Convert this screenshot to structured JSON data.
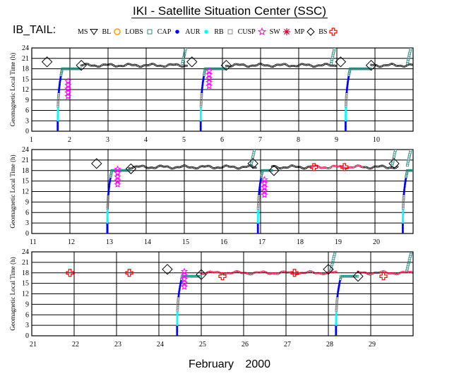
{
  "title": "IKI - Satellite Situation Center (SSC)",
  "program_label": "IB_TAIL:",
  "footer": {
    "month": "February",
    "year": "2000"
  },
  "legend": [
    {
      "label": "MS",
      "icon": "triangle-down-icon",
      "color": "#000000"
    },
    {
      "label": "BL",
      "icon": "circle-icon",
      "color": "#ff9900"
    },
    {
      "label": "LOBS",
      "icon": "square-icon",
      "color": "#2e8b80"
    },
    {
      "label": "CAP",
      "icon": "dot-icon",
      "color": "#0000ff"
    },
    {
      "label": "AUR",
      "icon": "dot-icon",
      "color": "#00ffff"
    },
    {
      "label": "RB",
      "icon": "square-icon",
      "color": "#888888"
    },
    {
      "label": "CUSP",
      "icon": "star-icon",
      "color": "#ff00ff"
    },
    {
      "label": "SW",
      "icon": "asterisk-icon",
      "color": "#cc0033"
    },
    {
      "label": "MP",
      "icon": "diamond-icon",
      "color": "#000000"
    },
    {
      "label": "BS",
      "icon": "cross-icon",
      "color": "#ff0000"
    }
  ],
  "chart_data": [
    {
      "type": "scatter",
      "panel": 1,
      "ylabel": "Geomagnetic Local Time (h)",
      "xlim": [
        1,
        11
      ],
      "ylim": [
        0,
        24
      ],
      "x_ticks": [
        1,
        2,
        3,
        4,
        5,
        6,
        7,
        8,
        9,
        10
      ],
      "y_ticks": [
        0,
        3,
        6,
        9,
        12,
        15,
        18,
        21,
        24
      ],
      "orbits": [
        {
          "start": 0.85,
          "ascent_day": 1.8,
          "apogee_day": 2.3,
          "end": 5.1,
          "cusp": [
            1.95,
            10
          ]
        },
        {
          "start": 5.1,
          "ascent_day": 5.55,
          "apogee_day": 6.1,
          "end": 9.0,
          "cusp": [
            5.65,
            13
          ]
        },
        {
          "start": 9.0,
          "ascent_day": 9.35,
          "apogee_day": 9.9,
          "end": 11.0,
          "cusp": null
        }
      ],
      "bow_shock": [],
      "magnetopause": [
        [
          1.4,
          20
        ],
        [
          2.3,
          19
        ],
        [
          5.2,
          20
        ],
        [
          6.1,
          19
        ],
        [
          9.1,
          20
        ],
        [
          9.9,
          19
        ]
      ],
      "baseline_glt": 19
    },
    {
      "type": "scatter",
      "panel": 2,
      "ylabel": "Geomagnetic Local Time (h)",
      "xlim": [
        11,
        21
      ],
      "ylim": [
        0,
        24
      ],
      "x_ticks": [
        11,
        12,
        13,
        14,
        15,
        16,
        17,
        18,
        19,
        20
      ],
      "y_ticks": [
        0,
        3,
        6,
        9,
        12,
        15,
        18,
        21,
        24
      ],
      "orbits": [
        {
          "start": 10.8,
          "ascent_day": 13.1,
          "apogee_day": 13.55,
          "end": 16.9,
          "cusp": [
            13.25,
            14
          ]
        },
        {
          "start": 16.9,
          "ascent_day": 17.05,
          "apogee_day": 17.3,
          "end": 20.6,
          "cusp": [
            17.1,
            11
          ]
        },
        {
          "start": 20.6,
          "ascent_day": 20.85,
          "apogee_day": 21.1,
          "end": 21.0,
          "cusp": null
        }
      ],
      "bow_shock": [
        [
          18.4,
          19
        ],
        [
          19.2,
          19
        ]
      ],
      "magnetopause": [
        [
          12.7,
          20
        ],
        [
          13.6,
          18.5
        ],
        [
          16.8,
          20
        ],
        [
          17.35,
          18
        ],
        [
          20.5,
          20
        ]
      ],
      "baseline_glt": 19
    },
    {
      "type": "scatter",
      "panel": 3,
      "ylabel": "Geomagnetic Local Time (h)",
      "xlim": [
        21,
        30
      ],
      "ylim": [
        0,
        24
      ],
      "x_ticks": [
        21,
        22,
        23,
        24,
        25,
        26,
        27,
        28,
        29
      ],
      "y_ticks": [
        0,
        3,
        6,
        9,
        12,
        15,
        18,
        21,
        24
      ],
      "orbits": [
        {
          "start": 20.9,
          "ascent_day": 24.55,
          "apogee_day": 25.0,
          "end": 28.2,
          "cusp": [
            24.6,
            14
          ]
        },
        {
          "start": 28.2,
          "ascent_day": 28.3,
          "apogee_day": 28.7,
          "end": 30.0,
          "cusp": null
        }
      ],
      "bow_shock": [
        [
          21.9,
          18
        ],
        [
          23.3,
          18
        ],
        [
          25.5,
          17
        ],
        [
          27.2,
          18
        ],
        [
          29.3,
          17
        ]
      ],
      "magnetopause": [
        [
          24.2,
          19
        ],
        [
          25.0,
          17.5
        ],
        [
          28.0,
          19
        ],
        [
          28.7,
          17
        ]
      ],
      "baseline_glt": 18
    }
  ]
}
